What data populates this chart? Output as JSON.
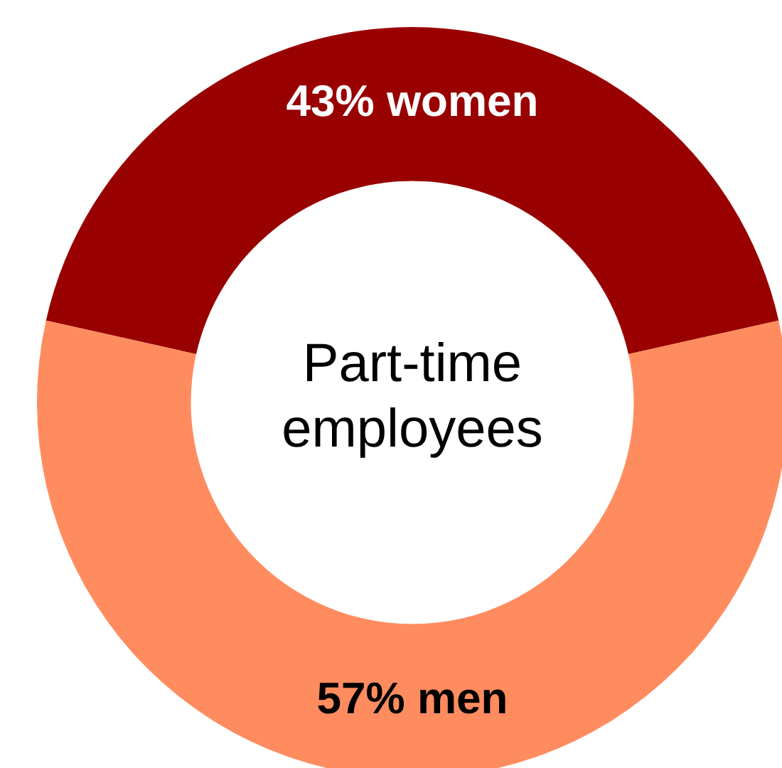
{
  "chart_data": {
    "type": "donut",
    "title": "Part-time employees",
    "categories": [
      "women",
      "men"
    ],
    "values": [
      43,
      57
    ],
    "colors": [
      "#990000",
      "#ff8c5f"
    ],
    "value_labels": [
      "43%",
      "57%"
    ],
    "legend": false
  }
}
